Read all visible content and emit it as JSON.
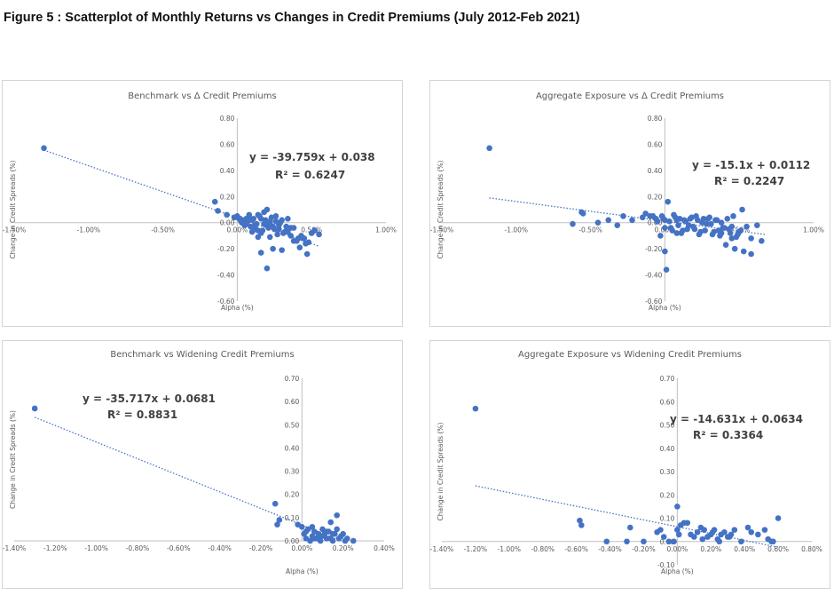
{
  "figure_title": "Figure 5 : Scatterplot of Monthly Returns vs Changes in Credit Premiums (July 2012-Feb 2021)",
  "colors": {
    "marker": "#4472c4",
    "trend": "#4472c4",
    "axis": "#bfbfbf",
    "text": "#595959"
  },
  "chart_data": [
    {
      "type": "scatter",
      "title": "Benchmark vs Δ Credit Premiums",
      "xlabel": "Alpha (%)",
      "ylabel": "Change in Credit Spreads (%)",
      "xlim": [
        -1.5,
        1.0
      ],
      "ylim": [
        -0.6,
        0.8
      ],
      "xticks": [
        -1.5,
        -1.0,
        -0.5,
        0.0,
        0.5,
        1.0
      ],
      "xtick_labels": [
        "-1.50%",
        "-1.00%",
        "-0.50%",
        "0.00%",
        "0.50%",
        "1.00%"
      ],
      "yticks": [
        -0.6,
        -0.4,
        -0.2,
        0.0,
        0.2,
        0.4,
        0.6,
        0.8
      ],
      "ytick_labels": [
        "-0.60",
        "-0.40",
        "-0.20",
        "0.00",
        "0.20",
        "0.40",
        "0.60",
        "0.80"
      ],
      "trendline": {
        "slope": -39.759,
        "intercept": 0.038,
        "x_from": -1.3,
        "x_to": 0.55
      },
      "equation": "y = -39.759x + 0.038",
      "r2": "R² = 0.6247",
      "x": [
        -1.3,
        -0.15,
        -0.13,
        -0.07,
        -0.02,
        0.0,
        0.02,
        0.03,
        0.05,
        0.06,
        0.08,
        0.1,
        0.12,
        0.14,
        0.16,
        0.18,
        0.2,
        0.22,
        0.24,
        0.26,
        0.28,
        0.3,
        0.32,
        0.34,
        0.36,
        0.38,
        0.4,
        0.42,
        0.44,
        0.46,
        0.48,
        0.5,
        0.52,
        0.55,
        0.12,
        0.14,
        0.16,
        0.2,
        0.22,
        0.25,
        0.27,
        0.3,
        0.04,
        0.07,
        0.09,
        0.11,
        0.13,
        0.15,
        0.17,
        0.19,
        0.21,
        0.23,
        0.06,
        0.1,
        0.08,
        0.18,
        0.26,
        0.28,
        0.33,
        0.45,
        0.47,
        0.52,
        0.43,
        0.38,
        0.34,
        0.36,
        0.24,
        0.16,
        0.12,
        0.02,
        0.0,
        0.05,
        0.2,
        0.22,
        0.29,
        0.31,
        0.41,
        0.14
      ],
      "y": [
        0.57,
        0.16,
        0.09,
        0.06,
        0.04,
        0.05,
        0.03,
        0.0,
        0.02,
        -0.01,
        0.04,
        0.02,
        -0.02,
        0.06,
        0.03,
        0.08,
        0.1,
        0.01,
        -0.03,
        0.05,
        -0.05,
        0.02,
        -0.07,
        0.03,
        -0.1,
        -0.04,
        -0.14,
        -0.19,
        -0.12,
        -0.16,
        -0.15,
        -0.08,
        -0.06,
        -0.09,
        -0.04,
        -0.06,
        -0.08,
        -0.02,
        -0.11,
        -0.05,
        -0.09,
        -0.21,
        0.0,
        0.01,
        -0.03,
        0.03,
        -0.01,
        0.05,
        -0.06,
        0.02,
        -0.04,
        0.04,
        0.03,
        -0.07,
        0.06,
        -0.01,
        0.01,
        -0.02,
        -0.03,
        -0.12,
        -0.24,
        -0.06,
        -0.1,
        -0.14,
        -0.07,
        -0.04,
        -0.2,
        -0.23,
        -0.05,
        0.02,
        0.04,
        -0.02,
        -0.35,
        -0.01,
        0.0,
        -0.08,
        -0.12,
        -0.11
      ]
    },
    {
      "type": "scatter",
      "title": "Aggregate Exposure vs Δ Credit Premiums",
      "xlabel": "Alpha (%)",
      "ylabel": "Change in Credit Spreads (%)",
      "xlim": [
        -1.5,
        1.0
      ],
      "ylim": [
        -0.6,
        0.8
      ],
      "xticks": [
        -1.5,
        -1.0,
        -0.5,
        0.0,
        0.5,
        1.0
      ],
      "xtick_labels": [
        "-1.50%",
        "-1.00%",
        "-0.50%",
        "0.00%",
        "0.50%",
        "1.00%"
      ],
      "yticks": [
        -0.6,
        -0.4,
        -0.2,
        0.0,
        0.2,
        0.4,
        0.6,
        0.8
      ],
      "ytick_labels": [
        "-0.60",
        "-0.40",
        "-0.20",
        "0.00",
        "0.20",
        "0.40",
        "0.60",
        "0.80"
      ],
      "trendline": {
        "slope": -15.1,
        "intercept": 0.0112,
        "x_from": -1.18,
        "x_to": 0.68
      },
      "equation": "y = -15.1x + 0.0112",
      "r2": "R² = 0.2247",
      "x": [
        -1.18,
        -0.62,
        -0.55,
        -0.56,
        -0.45,
        -0.38,
        -0.32,
        -0.28,
        -0.22,
        -0.15,
        -0.1,
        -0.06,
        -0.03,
        0.0,
        0.02,
        0.04,
        0.06,
        0.08,
        0.1,
        0.12,
        0.14,
        0.16,
        0.18,
        0.2,
        0.22,
        0.24,
        0.26,
        0.28,
        0.3,
        0.32,
        0.34,
        0.36,
        0.38,
        0.4,
        0.42,
        0.44,
        0.46,
        0.48,
        0.5,
        0.52,
        0.55,
        0.58,
        0.62,
        0.65,
        -0.01,
        -0.02,
        0.0,
        0.01,
        0.03,
        0.05,
        0.07,
        0.09,
        0.11,
        0.13,
        0.15,
        0.17,
        0.19,
        0.21,
        0.23,
        0.25,
        0.27,
        0.29,
        0.31,
        0.33,
        0.35,
        0.37,
        0.39,
        0.41,
        0.43,
        0.45,
        0.47,
        0.49,
        0.51,
        0.53,
        -0.05,
        -0.08,
        -0.13,
        0.58,
        0.45,
        0.38,
        0.0,
        0.08
      ],
      "y": [
        0.57,
        -0.01,
        0.07,
        0.08,
        0.0,
        0.02,
        -0.02,
        0.05,
        0.02,
        0.04,
        0.05,
        0.03,
        -0.1,
        0.02,
        0.16,
        -0.04,
        0.06,
        -0.08,
        0.03,
        -0.06,
        0.01,
        -0.02,
        0.04,
        -0.05,
        0.02,
        -0.07,
        0.03,
        -0.01,
        0.04,
        -0.09,
        0.02,
        -0.06,
        0.0,
        -0.04,
        0.03,
        -0.08,
        0.05,
        -0.11,
        -0.07,
        0.1,
        -0.03,
        -0.12,
        -0.02,
        -0.14,
        0.03,
        0.05,
        -0.04,
        -0.36,
        0.01,
        -0.06,
        0.04,
        -0.02,
        -0.08,
        0.02,
        -0.05,
        0.03,
        -0.03,
        0.05,
        -0.09,
        0.0,
        -0.06,
        0.03,
        -0.01,
        -0.07,
        0.02,
        -0.1,
        -0.04,
        -0.17,
        -0.05,
        -0.03,
        -0.2,
        -0.09,
        -0.06,
        -0.22,
        0.01,
        0.05,
        0.07,
        -0.24,
        -0.12,
        -0.08,
        -0.22,
        0.02
      ]
    },
    {
      "type": "scatter",
      "title": "Benchmark vs Widening Credit Premiums",
      "xlabel": "Alpha (%)",
      "ylabel": "Change in Credit Spreads (%)",
      "xlim": [
        -1.4,
        0.4
      ],
      "ylim": [
        0.0,
        0.7
      ],
      "xticks": [
        -1.4,
        -1.2,
        -1.0,
        -0.8,
        -0.6,
        -0.4,
        -0.2,
        0.0,
        0.2,
        0.4
      ],
      "xtick_labels": [
        "-1.40%",
        "-1.20%",
        "-1.00%",
        "-0.80%",
        "-0.60%",
        "-0.40%",
        "-0.20%",
        "0.00%",
        "0.20%",
        "0.40%"
      ],
      "yticks": [
        0.0,
        0.1,
        0.2,
        0.3,
        0.4,
        0.5,
        0.6,
        0.7
      ],
      "ytick_labels": [
        "0.00",
        "0.10",
        "0.20",
        "0.30",
        "0.40",
        "0.50",
        "0.60",
        "0.70"
      ],
      "trendline": {
        "slope": -35.717,
        "intercept": 0.0681,
        "x_from": -1.3,
        "x_to": 0.22
      },
      "equation": "y = -35.717x + 0.0681",
      "r2": "R² = 0.8831",
      "x": [
        -1.3,
        -0.13,
        -0.11,
        -0.12,
        -0.02,
        0.0,
        0.01,
        0.02,
        0.03,
        0.04,
        0.05,
        0.06,
        0.07,
        0.08,
        0.09,
        0.1,
        0.11,
        0.12,
        0.13,
        0.14,
        0.15,
        0.16,
        0.17,
        0.18,
        0.19,
        0.2,
        0.21,
        0.22,
        0.25,
        0.02,
        0.05,
        0.08,
        0.11,
        0.14,
        0.17,
        0.06,
        0.09,
        0.12,
        0.15
      ],
      "y": [
        0.57,
        0.16,
        0.09,
        0.07,
        0.07,
        0.06,
        0.03,
        0.01,
        0.05,
        0.0,
        0.02,
        0.04,
        0.01,
        0.03,
        0.0,
        0.05,
        0.02,
        0.01,
        0.04,
        0.08,
        0.0,
        0.03,
        0.11,
        0.01,
        0.02,
        0.03,
        0.0,
        0.01,
        0.0,
        0.04,
        0.06,
        0.02,
        0.03,
        0.01,
        0.05,
        0.01,
        0.02,
        0.04,
        0.03
      ]
    },
    {
      "type": "scatter",
      "title": "Aggregate Exposure vs Widening Credit Premiums",
      "xlabel": "Alpha (%)",
      "ylabel": "Change in Credit Spreads (%)",
      "xlim": [
        -1.4,
        0.8
      ],
      "ylim": [
        -0.1,
        0.7
      ],
      "xticks": [
        -1.4,
        -1.2,
        -1.0,
        -0.8,
        -0.6,
        -0.4,
        -0.2,
        0.0,
        0.2,
        0.4,
        0.6,
        0.8
      ],
      "xtick_labels": [
        "-1.40%",
        "-1.20%",
        "-1.00%",
        "-0.80%",
        "-0.60%",
        "-0.40%",
        "-0.20%",
        "0.00%",
        "0.20%",
        "0.40%",
        "0.60%",
        "0.80%"
      ],
      "yticks": [
        -0.1,
        0.0,
        0.1,
        0.2,
        0.3,
        0.4,
        0.5,
        0.6,
        0.7
      ],
      "ytick_labels": [
        "-0.10",
        "0.00",
        "0.10",
        "0.20",
        "0.30",
        "0.40",
        "0.50",
        "0.60",
        "0.70"
      ],
      "trendline": {
        "slope": -14.631,
        "intercept": 0.0634,
        "x_from": -1.2,
        "x_to": 0.6
      },
      "equation": "y = -14.631x + 0.0634",
      "r2": "R² = 0.3364",
      "x": [
        -1.2,
        -0.58,
        -0.57,
        -0.42,
        -0.3,
        -0.28,
        -0.2,
        -0.12,
        -0.1,
        -0.08,
        -0.05,
        -0.02,
        0.0,
        0.02,
        0.04,
        0.06,
        0.08,
        0.1,
        0.12,
        0.14,
        0.16,
        0.18,
        0.2,
        0.22,
        0.24,
        0.26,
        0.28,
        0.3,
        0.32,
        0.34,
        0.38,
        0.42,
        0.48,
        0.54,
        0.56,
        0.6,
        0.0,
        0.01,
        0.15,
        0.18,
        0.21,
        0.25,
        0.31,
        0.44,
        0.52,
        0.57
      ],
      "y": [
        0.57,
        0.09,
        0.07,
        0.0,
        0.0,
        0.06,
        0.0,
        0.04,
        0.05,
        0.02,
        0.0,
        0.0,
        0.15,
        0.07,
        0.08,
        0.08,
        0.03,
        0.02,
        0.04,
        0.06,
        0.05,
        0.02,
        0.03,
        0.05,
        0.01,
        0.03,
        0.04,
        0.02,
        0.03,
        0.05,
        0.0,
        0.06,
        0.03,
        0.01,
        0.0,
        0.1,
        0.05,
        0.03,
        0.01,
        0.02,
        0.04,
        0.0,
        0.02,
        0.04,
        0.05,
        0.0
      ]
    }
  ]
}
